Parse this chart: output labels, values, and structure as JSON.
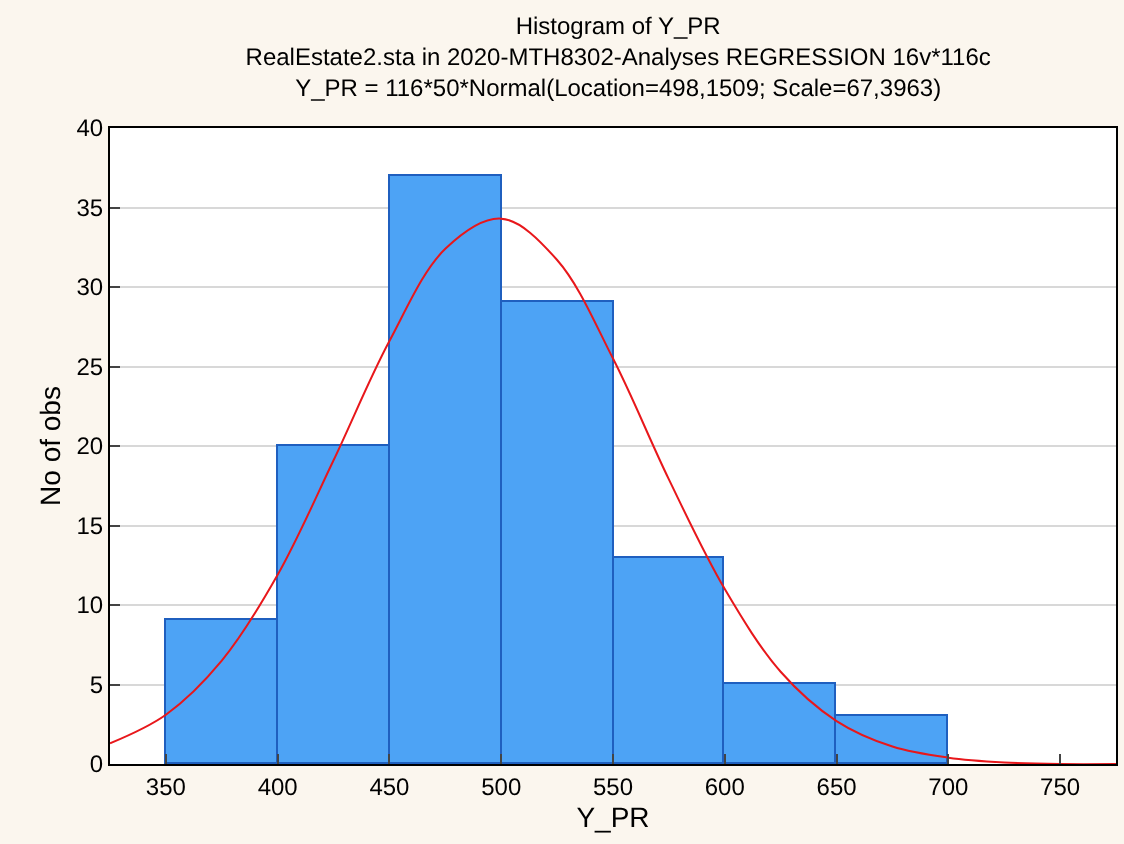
{
  "chart_data": {
    "type": "histogram",
    "title": "Histogram of Y_PR",
    "subtitle": "RealEstate2.sta in 2020-MTH8302-Analyses REGRESSION 16v*116c\nY_PR = 116*50*Normal(Location=498,1509; Scale=67,3963)",
    "xlabel": "Y_PR",
    "ylabel": "No of obs",
    "bins": [
      350,
      400,
      450,
      500,
      550,
      600,
      650,
      700
    ],
    "values": [
      9,
      20,
      37,
      29,
      13,
      5,
      3
    ],
    "color": "#4da3f5",
    "series": [
      {
        "type": "line",
        "color": "#e8171b",
        "x": [
          325,
          350,
          375,
          400,
          425,
          450,
          475,
          500,
          525,
          550,
          575,
          600,
          625,
          650,
          675,
          700,
          725,
          750,
          775
        ],
        "values": [
          1.3,
          3.1,
          6.5,
          11.9,
          19.1,
          26.6,
          32.4,
          34.3,
          31.7,
          25.5,
          17.9,
          11.0,
          5.8,
          2.7,
          1.1,
          0.4,
          0.1,
          0.0,
          0.0
        ]
      }
    ],
    "xlim": [
      325,
      775
    ],
    "xticks": [
      350,
      400,
      450,
      500,
      550,
      600,
      650,
      700,
      750
    ],
    "ylim": [
      0,
      40
    ],
    "yticks": [
      0,
      5,
      10,
      15,
      20,
      25,
      30,
      35,
      40
    ],
    "grid": "y"
  }
}
